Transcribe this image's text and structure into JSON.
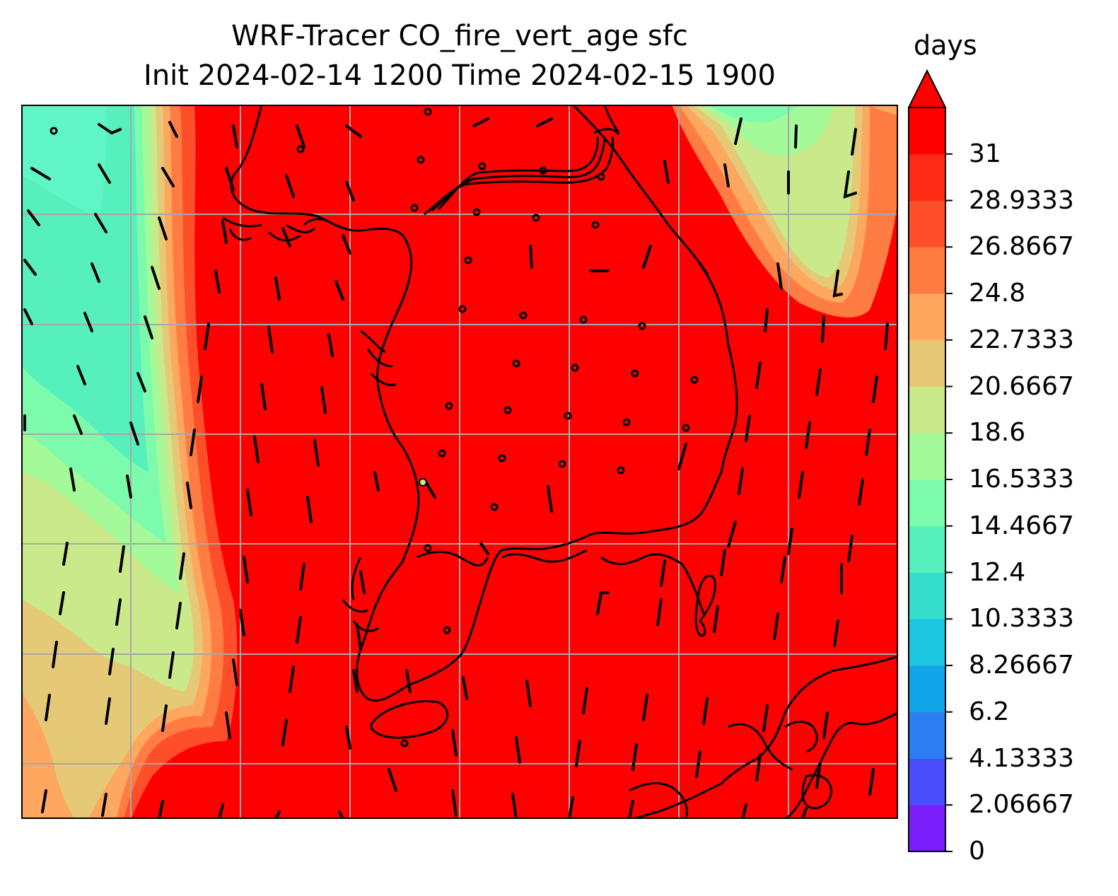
{
  "title_line1": "WRF-Tracer CO_fire_vert_age sfc",
  "title_line2": "Init 2024-02-14 1200 Time 2024-02-15 1900",
  "colorbar": {
    "units": "days",
    "tick_labels": [
      "0",
      "2.06667",
      "4.13333",
      "6.2",
      "8.26667",
      "10.3333",
      "12.4",
      "14.4667",
      "16.5333",
      "18.6",
      "20.6667",
      "22.7333",
      "24.8",
      "26.8667",
      "28.9333",
      "31"
    ],
    "colors": [
      "#7a1ffb",
      "#4a4ffb",
      "#2c7ef0",
      "#11a5e8",
      "#1cc6e0",
      "#36dfcb",
      "#56f0bd",
      "#7cfbac",
      "#a4fa98",
      "#c9e98a",
      "#e5c977",
      "#fda75f",
      "#ff7d43",
      "#ff4f2a",
      "#ff2a15",
      "#ff0000"
    ],
    "extend": "max"
  },
  "map": {
    "field": "CO_fire_vert_age",
    "level": "sfc",
    "dominant_value": "31",
    "colors": {
      "background": "#ff0000",
      "coastline": "#000000",
      "gridline": "#a8a8a8"
    }
  }
}
